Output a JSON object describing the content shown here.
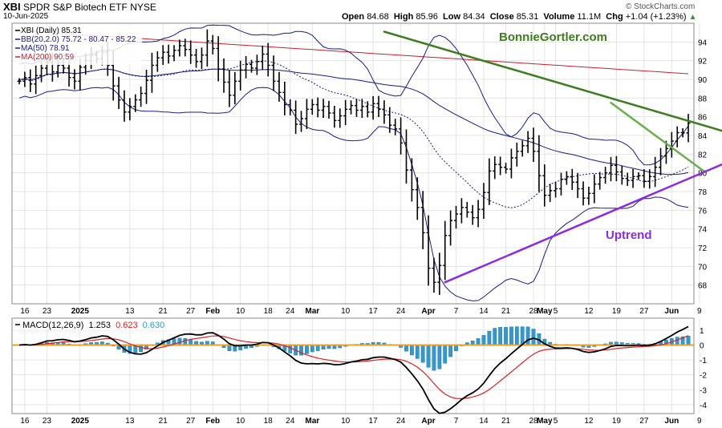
{
  "header": {
    "symbol": "XBI",
    "name": "SPDR S&P Biotech ETF",
    "exchange": "NYSE",
    "date": "10-Jun-2025",
    "source": "© StockCharts.com",
    "open_label": "Open",
    "open": "84.68",
    "high_label": "High",
    "high": "85.96",
    "low_label": "Low",
    "low": "84.34",
    "close_label": "Close",
    "close": "85.31",
    "volume_label": "Volume",
    "volume": "11.1M",
    "chg_label": "Chg",
    "chg": "+1.04 (+1.23%)",
    "chg_arrow": "▲"
  },
  "legend": {
    "price": "XBI (Daily) 85.31",
    "bb": "BB(20,2.0) 75.72 - 80.47 - 85.22",
    "ma50": "MA(50) 78.91",
    "ma200": "MA(200) 90.59"
  },
  "watermark": "BonnieGortler.com",
  "annotation": "Uptrend",
  "macd_legend": {
    "label": "MACD(12,26,9)",
    "macd": "1.253",
    "signal": "0.623",
    "hist": "0.630"
  },
  "colors": {
    "price_bar": "#000000",
    "bb_band": "#1a1a8c",
    "bb_mid": "#1a1a8c",
    "ma50": "#1a1a8c",
    "ma200": "#cc1f2a",
    "trend_dark": "#3c7d1c",
    "trend_light": "#6ab04c",
    "uptrend": "#8a2be2",
    "watermark": "#3c7d1c",
    "macd_line": "#000000",
    "signal_line": "#e02020",
    "histogram": "#3399cc",
    "zero_line": "#f0a020",
    "grid": "#e4e4e4"
  },
  "chart_data": [
    {
      "type": "ohlc",
      "title": "XBI SPDR S&P Biotech ETF",
      "ylim": [
        66,
        96
      ],
      "y_ticks": [
        68,
        70,
        72,
        74,
        76,
        78,
        80,
        82,
        84,
        86,
        88,
        90,
        92,
        94
      ],
      "x_labels": [
        "16",
        "23",
        "2025",
        "13",
        "21",
        "27",
        "Feb",
        "10",
        "18",
        "24",
        "Mar",
        "10",
        "17",
        "24",
        "Apr",
        "7",
        "14",
        "21",
        "28",
        "May",
        "5",
        "12",
        "19",
        "27",
        "Jun",
        "9"
      ],
      "grid": true,
      "series_close": [
        89.8,
        90.2,
        89.5,
        90.4,
        91.2,
        91.8,
        90.8,
        91.5,
        91.2,
        90.2,
        89.8,
        91.3,
        92.0,
        92.6,
        92.2,
        92.9,
        91.5,
        89.3,
        87.8,
        86.5,
        87.1,
        87.8,
        88.5,
        89.9,
        91.5,
        92.3,
        92.9,
        92.5,
        93.1,
        93.6,
        93.2,
        92.6,
        91.9,
        92.6,
        94.1,
        93.3,
        91.1,
        89.7,
        88.3,
        89.8,
        91.0,
        91.6,
        91.2,
        91.9,
        92.7,
        91.5,
        89.8,
        88.6,
        87.3,
        86.7,
        85.2,
        85.8,
        86.8,
        87.3,
        86.7,
        87.1,
        86.4,
        85.6,
        86.1,
        86.8,
        87.2,
        86.7,
        87.1,
        86.5,
        87.4,
        86.8,
        86.2,
        85.1,
        84.7,
        83.2,
        80.3,
        78.2,
        76.3,
        73.6,
        69.8,
        68.3,
        70.1,
        73.3,
        74.9,
        75.6,
        76.3,
        75.8,
        75.2,
        76.1,
        77.9,
        80.2,
        80.9,
        80.6,
        80.4,
        81.6,
        82.3,
        82.9,
        83.7,
        82.3,
        79.7,
        77.6,
        78.1,
        78.3,
        79.3,
        79.6,
        79.0,
        78.3,
        77.3,
        77.8,
        78.8,
        79.5,
        80.0,
        80.8,
        80.1,
        79.4,
        79.2,
        79.6,
        79.7,
        79.1,
        79.6,
        80.6,
        81.8,
        82.6,
        83.4,
        84.3,
        84.27,
        85.31
      ],
      "overlays": [
        "BB(20,2.0)",
        "MA(50)",
        "MA(200)"
      ],
      "trendlines": [
        {
          "name": "green-resistance",
          "from": [
            66,
            95.1
          ],
          "to": [
            128,
            84.5
          ]
        },
        {
          "name": "light-green-resistance",
          "from": [
            107,
            87.5
          ],
          "to": [
            124,
            80.1
          ]
        },
        {
          "name": "uptrend-support",
          "from": [
            77,
            68.3
          ],
          "to": [
            132,
            80.9
          ]
        }
      ]
    },
    {
      "type": "macd",
      "title": "MACD(12,26,9)",
      "ylim": [
        -4.6,
        1.8
      ],
      "y_ticks": [
        -4,
        -3,
        -2,
        -1,
        0,
        1
      ],
      "grid": true,
      "x_labels": [
        "16",
        "23",
        "2025",
        "13",
        "21",
        "27",
        "Feb",
        "10",
        "18",
        "24",
        "Mar",
        "10",
        "17",
        "24",
        "Apr",
        "7",
        "14",
        "21",
        "28",
        "May",
        "5",
        "12",
        "19",
        "27",
        "Jun",
        "9"
      ],
      "macd": 1.253,
      "signal": 0.623,
      "histogram": 0.63
    }
  ]
}
